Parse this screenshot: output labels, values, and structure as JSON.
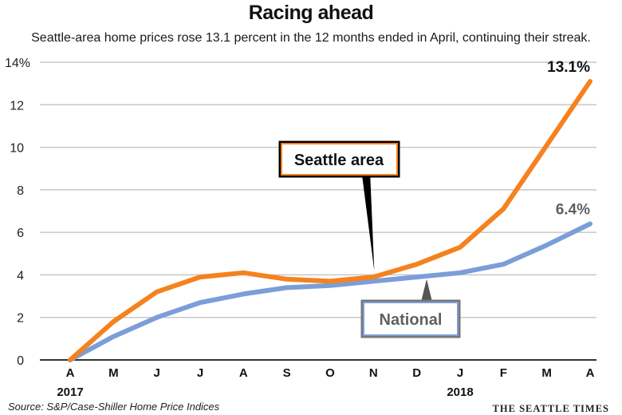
{
  "header": {
    "title": "Racing ahead",
    "subtitle": "Seattle-area home prices rose 13.1 percent in the 12 months ended in April, continuing their streak."
  },
  "footer": {
    "source": "Source: S&P/Case-Shiller Home Price Indices",
    "brand": "THE SEATTLE TIMES"
  },
  "colors": {
    "seattle": "#F5821F",
    "national": "#7B9ED8",
    "grid": "#C8C8C8",
    "axis": "#333333",
    "national_label": "#5F6062"
  },
  "chart_data": {
    "type": "line",
    "title": "Racing ahead",
    "xlabel": "",
    "ylabel": "",
    "categories": [
      "A",
      "M",
      "J",
      "J",
      "A",
      "S",
      "O",
      "N",
      "D",
      "J",
      "F",
      "M",
      "A"
    ],
    "year_labels": [
      {
        "index": 0,
        "label": "2017"
      },
      {
        "index": 9,
        "label": "2018"
      }
    ],
    "yticks": [
      {
        "value": 0,
        "label": "0"
      },
      {
        "value": 2,
        "label": "2"
      },
      {
        "value": 4,
        "label": "4"
      },
      {
        "value": 6,
        "label": "6"
      },
      {
        "value": 8,
        "label": "8"
      },
      {
        "value": 10,
        "label": "10"
      },
      {
        "value": 12,
        "label": "12"
      },
      {
        "value": 14,
        "label": "14%"
      }
    ],
    "ylim": [
      0,
      14
    ],
    "grid": true,
    "series": [
      {
        "name": "Seattle area",
        "key": "seattle",
        "values": [
          0,
          1.8,
          3.2,
          3.9,
          4.1,
          3.8,
          3.7,
          3.9,
          4.5,
          5.3,
          7.1,
          10.1,
          13.1
        ],
        "end_label": "13.1%",
        "callout_index": 7
      },
      {
        "name": "National",
        "key": "national",
        "values": [
          0,
          1.1,
          2.0,
          2.7,
          3.1,
          3.4,
          3.5,
          3.7,
          3.9,
          4.1,
          4.5,
          5.4,
          6.4
        ],
        "end_label": "6.4%",
        "callout_index": 8
      }
    ]
  }
}
